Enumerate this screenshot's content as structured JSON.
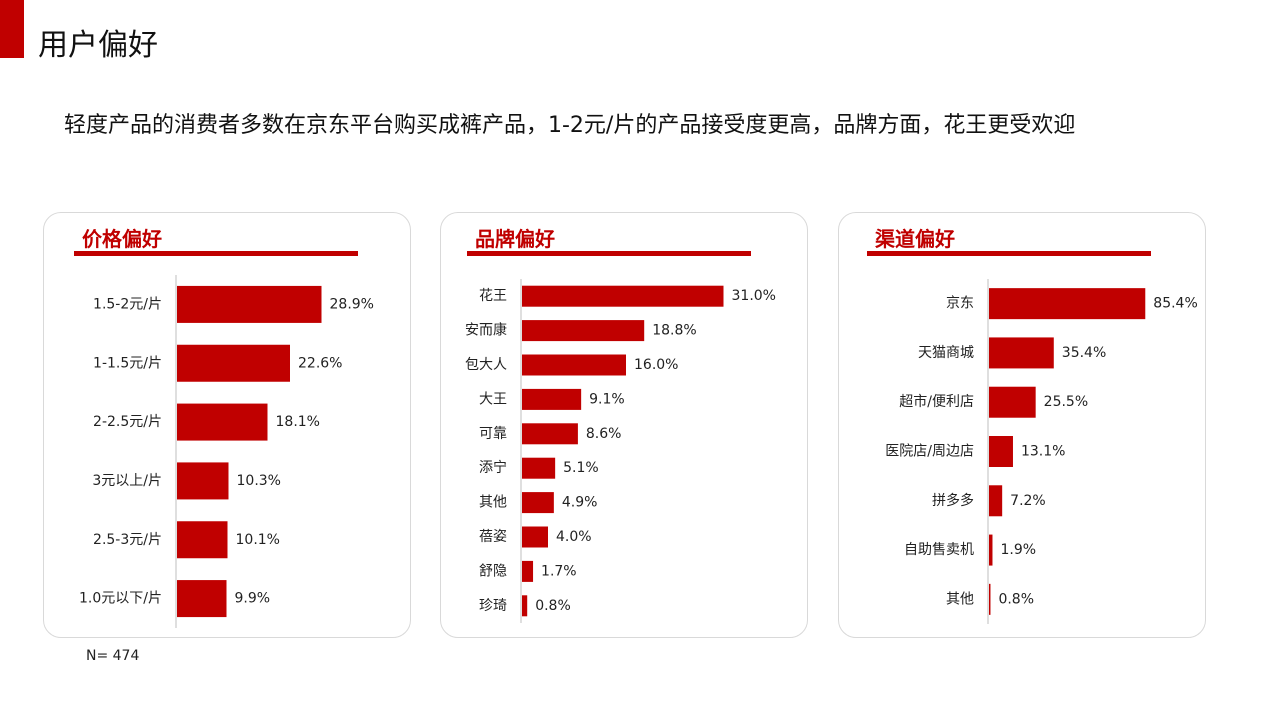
{
  "page": {
    "title": "用户偏好",
    "headline": "轻度产品的消费者多数在京东平台购买成裤产品，1-2元/片的产品接受度更高，品牌方面，花王更受欢迎",
    "footnote": "N= 474",
    "colors": {
      "accent": "#c00000",
      "bar": "#c00000",
      "text": "#111111",
      "border": "#d9d9d9"
    }
  },
  "chart_data": [
    {
      "type": "bar",
      "orientation": "horizontal",
      "title": "价格偏好",
      "categories": [
        "1.5-2元/片",
        "1-1.5元/片",
        "2-2.5元/片",
        "3元以上/片",
        "2.5-3元/片",
        "1.0元以下/片"
      ],
      "values": [
        28.9,
        22.6,
        18.1,
        10.3,
        10.1,
        9.9
      ],
      "data_labels": [
        "28.9%",
        "22.6%",
        "18.1%",
        "10.3%",
        "10.1%",
        "9.9%"
      ],
      "xlim": [
        0,
        40
      ],
      "grid": false
    },
    {
      "type": "bar",
      "orientation": "horizontal",
      "title": "品牌偏好",
      "categories": [
        "花王",
        "安而康",
        "包大人",
        "大王",
        "可靠",
        "添宁",
        "其他",
        "蓓姿",
        "舒隐",
        "珍琦"
      ],
      "values": [
        31.0,
        18.8,
        16.0,
        9.1,
        8.6,
        5.1,
        4.9,
        4.0,
        1.7,
        0.8
      ],
      "data_labels": [
        "31.0%",
        "18.8%",
        "16.0%",
        "9.1%",
        "8.6%",
        "5.1%",
        "4.9%",
        "4.0%",
        "1.7%",
        "0.8%"
      ],
      "xlim": [
        0,
        40
      ],
      "grid": false
    },
    {
      "type": "bar",
      "orientation": "horizontal",
      "title": "渠道偏好",
      "categories": [
        "京东",
        "天猫商城",
        "超市/便利店",
        "医院店/周边店",
        "拼多多",
        "自助售卖机",
        "其他"
      ],
      "values": [
        85.4,
        35.4,
        25.5,
        13.1,
        7.2,
        1.9,
        0.8
      ],
      "data_labels": [
        "85.4%",
        "35.4%",
        "25.5%",
        "13.1%",
        "7.2%",
        "1.9%",
        "0.8%"
      ],
      "xlim": [
        0,
        100
      ],
      "grid": false
    }
  ]
}
